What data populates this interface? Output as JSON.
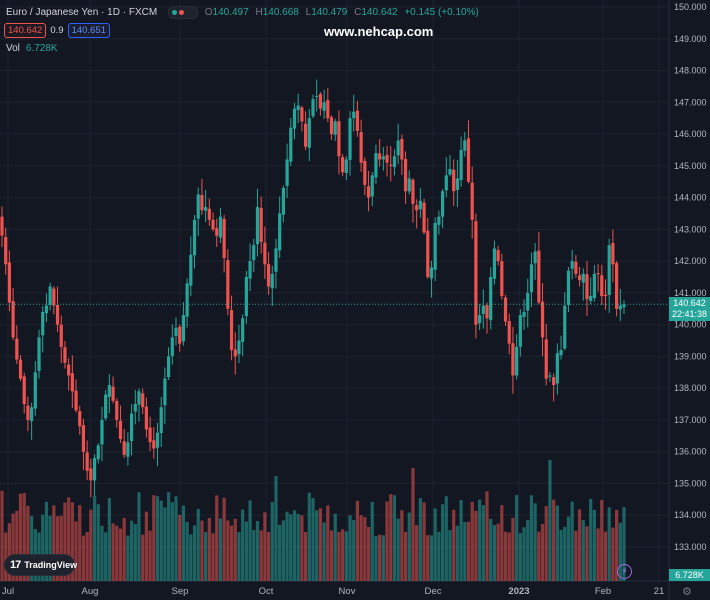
{
  "header": {
    "symbol_title": "Euro / Japanese Yen · 1D · FXCM",
    "ohlc": {
      "o_label": "O",
      "o": "140.497",
      "h_label": "H",
      "h": "140.668",
      "l_label": "L",
      "l": "140.479",
      "c_label": "C",
      "c": "140.642",
      "change": "+0.145 (+0.10%)"
    },
    "bid": "140.642",
    "spread": "0.9",
    "ask": "140.651",
    "vol_label": "Vol",
    "vol_value": "6.728K"
  },
  "watermark": "www.nehcap.com",
  "logo_text": "TradingView",
  "price_label": {
    "price": "140.642",
    "countdown": "22:41:38"
  },
  "volume_label": "6.728K",
  "colors": {
    "up": "#26a69a",
    "down": "#ef5350",
    "background": "#131722",
    "grid": "#1e222d"
  },
  "chart_data": {
    "type": "candlestick",
    "title": "Euro / Japanese Yen · 1D · FXCM",
    "y_axis_ticks": [
      133.0,
      134.0,
      135.0,
      136.0,
      137.0,
      138.0,
      139.0,
      140.0,
      141.0,
      142.0,
      143.0,
      144.0,
      145.0,
      146.0,
      147.0,
      148.0,
      149.0,
      150.0
    ],
    "x_axis_labels": [
      "Jul",
      "Aug",
      "Sep",
      "Oct",
      "Nov",
      "Dec",
      "2023",
      "Feb",
      "21"
    ],
    "ylim": [
      132.6,
      150.1
    ],
    "last_price": 140.642,
    "closes": [
      142.8,
      141.9,
      140.7,
      139.6,
      138.9,
      138.3,
      137.5,
      137.0,
      137.4,
      138.5,
      139.6,
      140.4,
      140.6,
      141.2,
      140.6,
      140.0,
      139.3,
      138.8,
      138.4,
      137.9,
      137.3,
      136.8,
      136.0,
      135.4,
      135.1,
      135.8,
      136.2,
      137.0,
      137.8,
      138.1,
      137.6,
      137.0,
      136.4,
      135.9,
      136.3,
      137.2,
      137.5,
      137.9,
      137.4,
      136.7,
      136.3,
      136.1,
      136.6,
      137.4,
      138.3,
      139.0,
      139.6,
      139.9,
      139.4,
      140.3,
      141.3,
      142.2,
      143.3,
      144.1,
      143.6,
      143.7,
      143.3,
      143.0,
      142.8,
      143.4,
      142.1,
      140.5,
      139.2,
      139.0,
      139.5,
      140.2,
      141.5,
      142.0,
      142.5,
      143.7,
      142.6,
      141.9,
      141.2,
      141.6,
      142.4,
      143.5,
      144.3,
      145.2,
      146.2,
      146.8,
      146.9,
      146.4,
      145.6,
      146.5,
      147.1,
      147.2,
      146.8,
      147.0,
      146.5,
      146.0,
      146.4,
      145.3,
      144.8,
      145.2,
      146.5,
      146.7,
      146.1,
      145.1,
      144.4,
      144.0,
      144.7,
      145.4,
      145.2,
      145.3,
      145.1,
      145.0,
      145.3,
      145.8,
      145.2,
      144.2,
      144.6,
      143.8,
      143.6,
      143.9,
      142.9,
      141.5,
      141.8,
      143.2,
      143.4,
      144.2,
      144.7,
      144.9,
      144.2,
      144.6,
      145.5,
      145.8,
      144.5,
      143.3,
      140.0,
      140.3,
      140.6,
      140.2,
      141.5,
      142.4,
      142.0,
      140.9,
      140.1,
      139.4,
      138.4,
      139.3,
      140.3,
      140.4,
      141.0,
      141.9,
      142.3,
      140.7,
      139.6,
      138.3,
      138.4,
      138.1,
      139.1,
      139.2,
      140.6,
      141.7,
      142.0,
      141.6,
      141.4,
      141.6,
      140.8,
      140.9,
      141.6,
      141.6,
      140.9,
      140.9,
      142.5,
      141.9,
      140.5,
      140.6,
      140.642
    ]
  }
}
